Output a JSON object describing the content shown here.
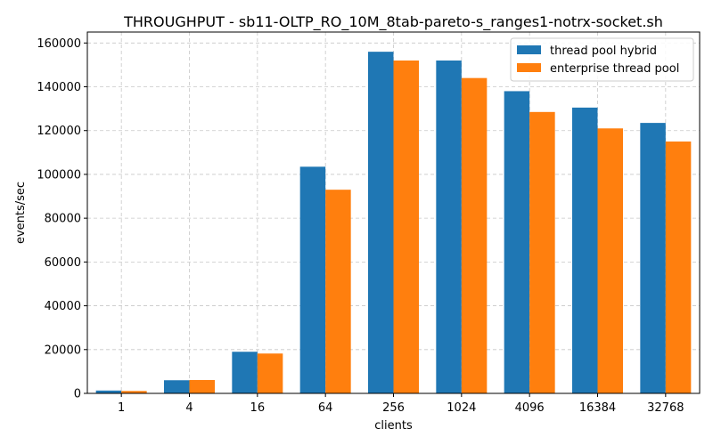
{
  "chart_data": {
    "type": "bar",
    "title": "THROUGHPUT - sb11-OLTP_RO_10M_8tab-pareto-s_ranges1-notrx-socket.sh",
    "xlabel": "clients",
    "ylabel": "events/sec",
    "categories": [
      "1",
      "4",
      "16",
      "64",
      "256",
      "1024",
      "4096",
      "16384",
      "32768"
    ],
    "ylim": [
      0,
      165000
    ],
    "yticks": [
      0,
      20000,
      40000,
      60000,
      80000,
      100000,
      120000,
      140000,
      160000
    ],
    "grid": true,
    "legend_position": "top-right",
    "series": [
      {
        "name": "thread pool hybrid",
        "color": "#1f77b4",
        "values": [
          1300,
          6000,
          19000,
          103500,
          156000,
          152000,
          138000,
          130500,
          123500
        ]
      },
      {
        "name": "enterprise thread pool",
        "color": "#ff7f0e",
        "values": [
          1100,
          6100,
          18200,
          93000,
          152000,
          144000,
          128500,
          121000,
          115000
        ]
      }
    ]
  }
}
